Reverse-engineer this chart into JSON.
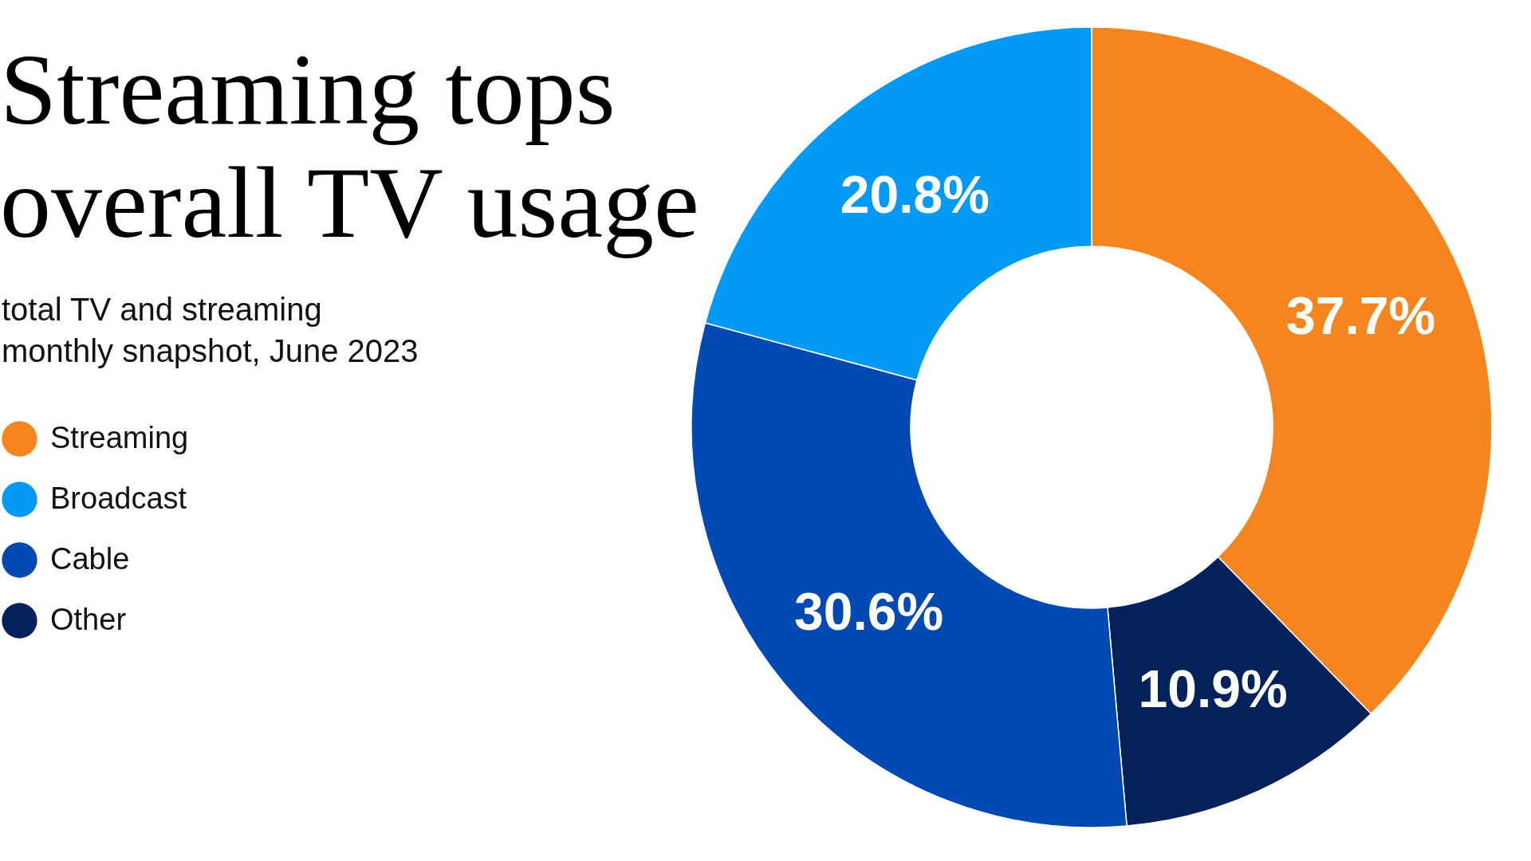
{
  "chart_data": {
    "type": "donut",
    "title": "Streaming tops\noverall TV usage",
    "subtitle": "total TV and streaming\nmonthly snapshot, June 2023",
    "categories": [
      "Streaming",
      "Other",
      "Cable",
      "Broadcast"
    ],
    "values": [
      37.7,
      10.9,
      30.6,
      20.8
    ],
    "colors": [
      "#f7851f",
      "#03215a",
      "#0349b4",
      "#0399f7"
    ],
    "value_labels": [
      "37.7%",
      "10.9%",
      "30.6%",
      "20.8%"
    ],
    "legend": "left"
  }
}
